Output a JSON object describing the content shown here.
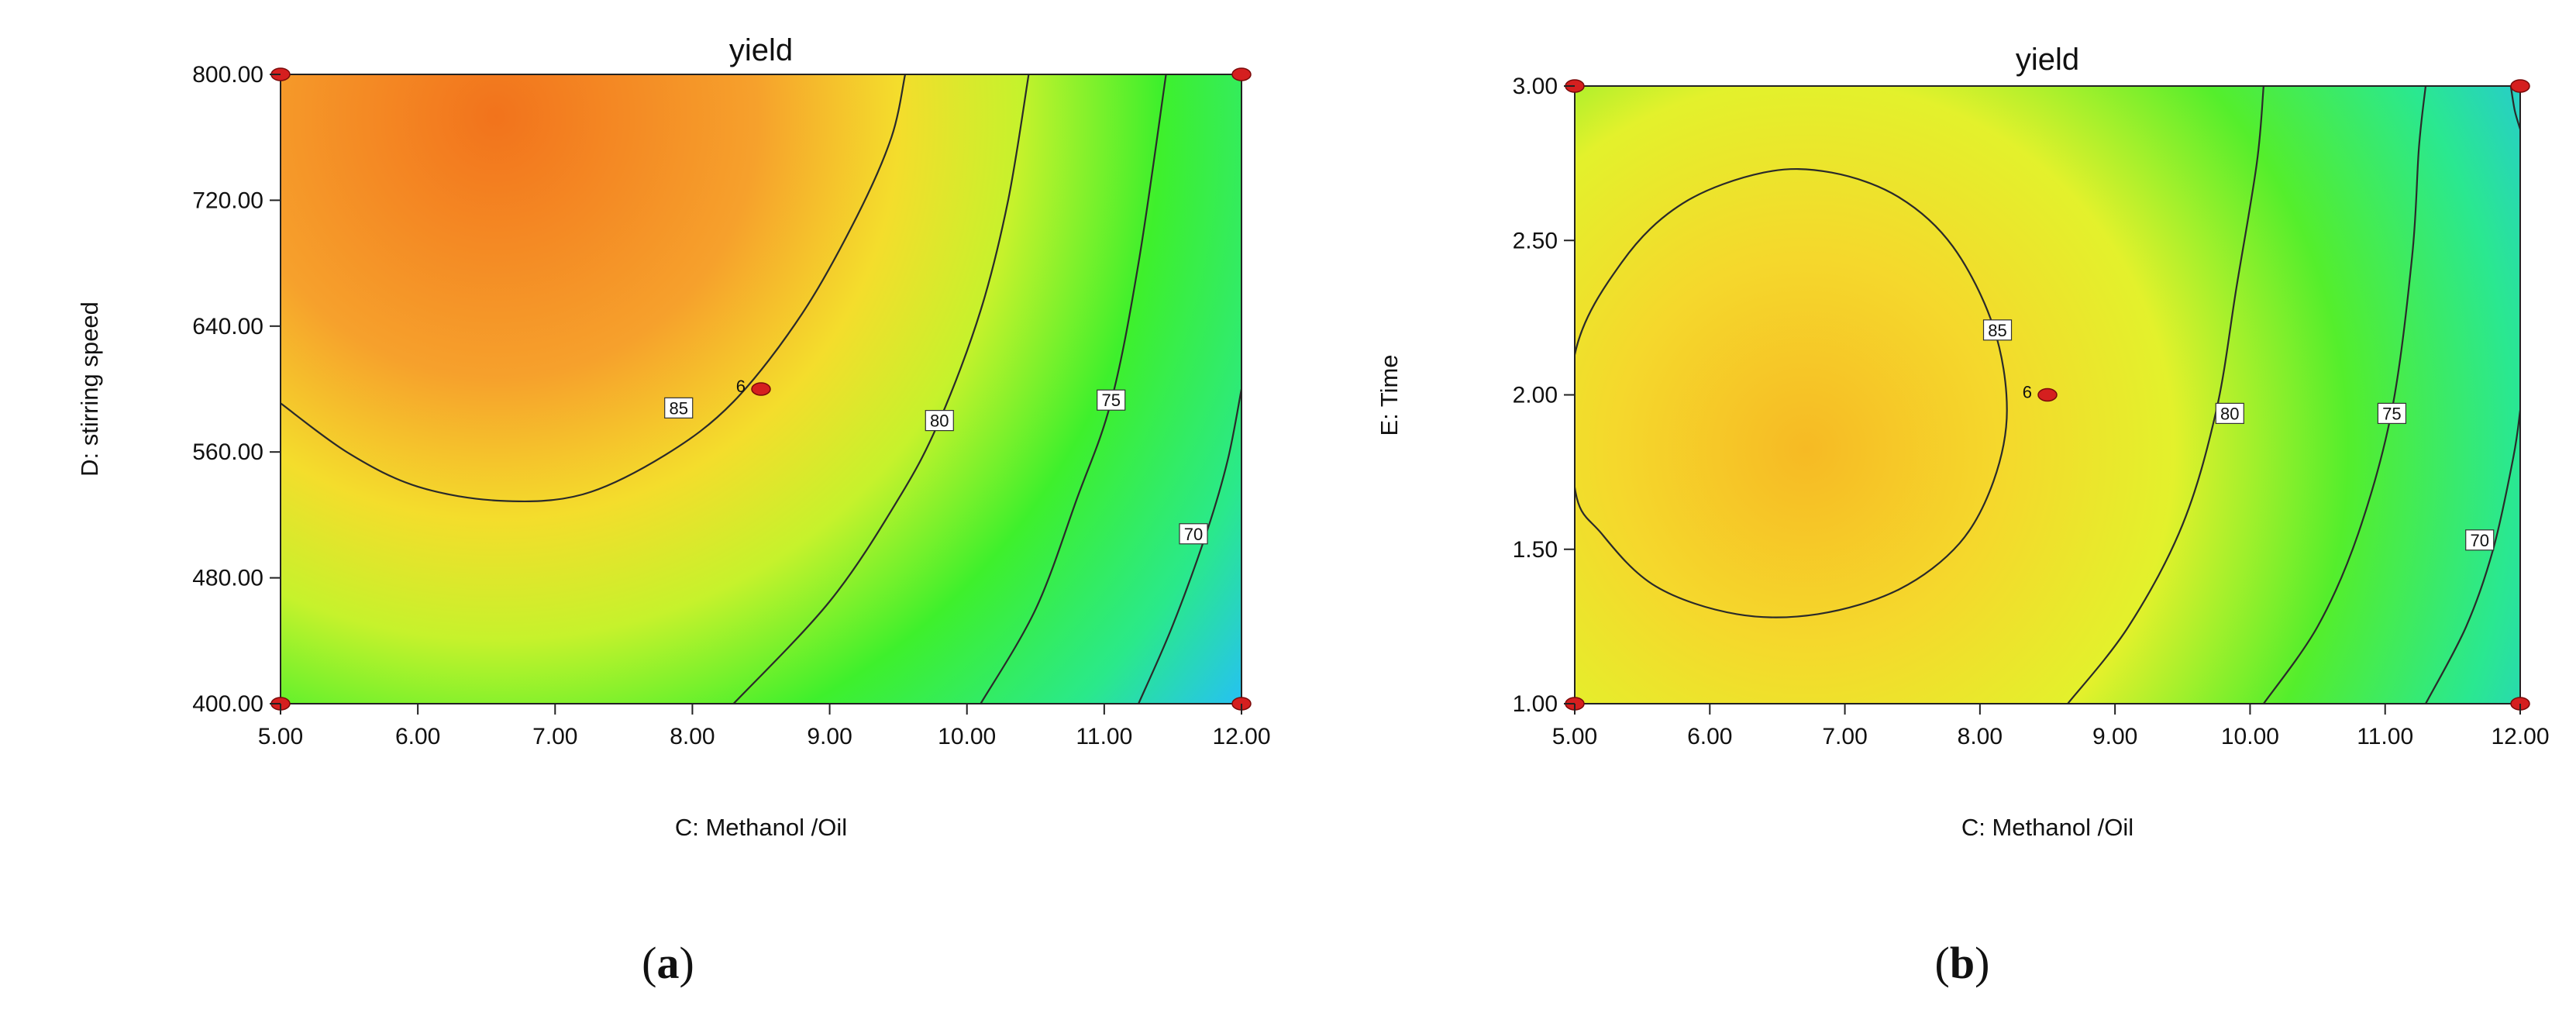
{
  "chart_data": [
    {
      "type": "contour",
      "panel": "(a)",
      "panel_letter": "a",
      "title": "yield",
      "xlabel": "C: Methanol /Oil",
      "ylabel": "D: stirring speed",
      "xlim": [
        5,
        12
      ],
      "ylim": [
        400,
        800
      ],
      "xticks": [
        "5.00",
        "6.00",
        "7.00",
        "8.00",
        "9.00",
        "10.00",
        "11.00",
        "12.00"
      ],
      "yticks": [
        "400.00",
        "480.00",
        "560.00",
        "640.00",
        "720.00",
        "800.00"
      ],
      "optimum": [
        6.6,
        775
      ],
      "contours": [
        {
          "level": "85",
          "points": [
            [
              5.0,
              591
            ],
            [
              5.5,
              559
            ],
            [
              6.0,
              538
            ],
            [
              6.6,
              529
            ],
            [
              7.2,
              533
            ],
            [
              7.8,
              558
            ],
            [
              8.3,
              592
            ],
            [
              8.8,
              648
            ],
            [
              9.2,
              710
            ],
            [
              9.45,
              760
            ],
            [
              9.55,
              800
            ]
          ],
          "label_at": [
            7.9,
            588
          ]
        },
        {
          "level": "80",
          "points": [
            [
              8.3,
              400
            ],
            [
              9.0,
              465
            ],
            [
              9.5,
              530
            ],
            [
              9.8,
              580
            ],
            [
              10.1,
              650
            ],
            [
              10.3,
              720
            ],
            [
              10.45,
              800
            ]
          ],
          "label_at": [
            9.8,
            580
          ]
        },
        {
          "level": "75",
          "points": [
            [
              10.1,
              400
            ],
            [
              10.5,
              460
            ],
            [
              10.8,
              530
            ],
            [
              11.05,
              592
            ],
            [
              11.25,
              680
            ],
            [
              11.45,
              800
            ]
          ],
          "label_at": [
            11.05,
            593
          ]
        },
        {
          "level": "70",
          "points": [
            [
              11.25,
              400
            ],
            [
              11.5,
              450
            ],
            [
              11.75,
              510
            ],
            [
              11.9,
              555
            ],
            [
              12.0,
              600
            ]
          ],
          "label_at": [
            11.65,
            508
          ]
        }
      ],
      "design_points": [
        [
          5,
          800
        ],
        [
          12,
          800
        ],
        [
          5,
          400
        ],
        [
          12,
          400
        ],
        [
          8.5,
          600
        ]
      ],
      "center_point": {
        "x": 8.5,
        "y": 600,
        "label": "6"
      }
    },
    {
      "type": "contour",
      "panel": "(b)",
      "panel_letter": "b",
      "title": "yield",
      "xlabel": "C: Methanol /Oil",
      "ylabel": "E: Time",
      "xlim": [
        5,
        12
      ],
      "ylim": [
        1,
        3
      ],
      "xticks": [
        "5.00",
        "6.00",
        "7.00",
        "8.00",
        "9.00",
        "10.00",
        "11.00",
        "12.00"
      ],
      "yticks": [
        "1.00",
        "1.50",
        "2.00",
        "2.50",
        "3.00"
      ],
      "optimum": [
        6.5,
        1.92
      ],
      "contours": [
        {
          "level": "85",
          "closed": true,
          "points": [
            [
              5.0,
              2.13
            ],
            [
              5.35,
              2.43
            ],
            [
              5.8,
              2.62
            ],
            [
              6.4,
              2.72
            ],
            [
              6.9,
              2.72
            ],
            [
              7.4,
              2.64
            ],
            [
              7.8,
              2.48
            ],
            [
              8.1,
              2.22
            ],
            [
              8.2,
              1.95
            ],
            [
              8.1,
              1.72
            ],
            [
              7.85,
              1.52
            ],
            [
              7.4,
              1.37
            ],
            [
              6.8,
              1.29
            ],
            [
              6.2,
              1.29
            ],
            [
              5.6,
              1.38
            ],
            [
              5.2,
              1.55
            ],
            [
              5.0,
              1.7
            ]
          ],
          "label_at": [
            8.13,
            2.21
          ]
        },
        {
          "level": "80",
          "points": [
            [
              8.65,
              1.0
            ],
            [
              9.1,
              1.25
            ],
            [
              9.5,
              1.58
            ],
            [
              9.75,
              1.95
            ],
            [
              9.9,
              2.35
            ],
            [
              10.05,
              2.75
            ],
            [
              10.1,
              3.0
            ]
          ],
          "label_at": [
            9.85,
            1.94
          ]
        },
        {
          "level": "75",
          "points": [
            [
              10.1,
              1.0
            ],
            [
              10.5,
              1.25
            ],
            [
              10.8,
              1.55
            ],
            [
              11.05,
              1.95
            ],
            [
              11.2,
              2.45
            ],
            [
              11.25,
              2.8
            ],
            [
              11.3,
              3.0
            ]
          ],
          "label_at": [
            11.05,
            1.94
          ]
        },
        {
          "level": "70",
          "points": [
            [
              11.3,
              1.0
            ],
            [
              11.6,
              1.25
            ],
            [
              11.8,
              1.5
            ],
            [
              11.95,
              1.8
            ],
            [
              12.0,
              1.95
            ]
          ],
          "label_at": [
            11.7,
            1.53
          ]
        },
        {
          "level": "",
          "points": [
            [
              11.93,
              3.0
            ],
            [
              11.96,
              2.92
            ],
            [
              12.0,
              2.86
            ]
          ]
        }
      ],
      "design_points": [
        [
          5,
          3
        ],
        [
          12,
          3
        ],
        [
          5,
          1
        ],
        [
          12,
          1
        ],
        [
          8.5,
          2
        ]
      ],
      "center_point": {
        "x": 8.5,
        "y": 2,
        "label": "6"
      }
    }
  ]
}
